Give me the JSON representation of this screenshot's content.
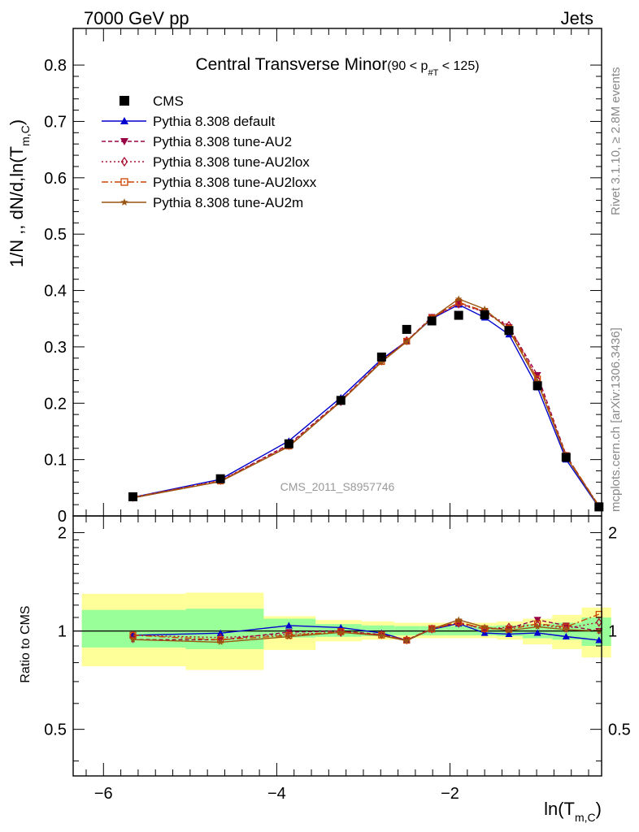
{
  "header": {
    "left": "7000 GeV pp",
    "right": "Jets"
  },
  "side": {
    "rivet": "Rivet 3.1.10, ≥ 2.8M events",
    "mcplots": "mcplots.cern.ch [arXiv:1306.3436]"
  },
  "watermark": "CMS_2011_S8957746",
  "chart_data": {
    "type": "line",
    "title": "Central Transverse Minor",
    "title_sub": "(90 < p",
    "title_sub_script": "#T",
    "title_sub_end": " < 125)",
    "ylabel": "1/N ,, dN/d,ln(T",
    "ylabel_sub": "m,C",
    "ylabel_end": ")",
    "xlabel": "ln(T",
    "xlabel_sub": "m,C",
    "xlabel_end": ")",
    "xlim": [
      -6.35,
      -0.25
    ],
    "ylim": [
      0,
      0.865
    ],
    "ratio_ylabel": "Ratio to CMS",
    "ratio_ylim": [
      0.36,
      2.25
    ],
    "x_ticks": [
      -6,
      -4,
      -2
    ],
    "x_tick_labels": [
      "−6",
      "−4",
      "−2"
    ],
    "y_ticks": [
      0,
      0.1,
      0.2,
      0.3,
      0.4,
      0.5,
      0.6,
      0.7,
      0.8
    ],
    "y_tick_labels": [
      "0",
      "0.1",
      "0.2",
      "0.3",
      "0.4",
      "0.5",
      "0.6",
      "0.7",
      "0.8"
    ],
    "ratio_ticks": [
      0.5,
      1,
      2
    ],
    "ratio_tick_labels": [
      "0.5",
      "1",
      "2"
    ],
    "x": [
      -5.66,
      -4.65,
      -3.86,
      -3.26,
      -2.79,
      -2.5,
      -2.21,
      -1.9,
      -1.6,
      -1.32,
      -0.99,
      -0.66,
      -0.28
    ],
    "series": [
      {
        "name": "CMS",
        "color": "#000000",
        "marker": "square",
        "values": [
          0.034,
          0.066,
          0.128,
          0.205,
          0.282,
          0.331,
          0.346,
          0.356,
          0.357,
          0.329,
          0.231,
          0.104,
          0.016
        ]
      },
      {
        "name": "Pythia 8.308 default",
        "color": "#0000cc",
        "marker": "triangle-up",
        "values": [
          0.033,
          0.065,
          0.133,
          0.21,
          0.278,
          0.31,
          0.35,
          0.375,
          0.352,
          0.322,
          0.228,
          0.1,
          0.015
        ]
      },
      {
        "name": "Pythia 8.308 tune-AU2",
        "color": "#990044",
        "marker": "triangle-down",
        "values": [
          0.032,
          0.062,
          0.127,
          0.205,
          0.275,
          0.31,
          0.353,
          0.378,
          0.362,
          0.335,
          0.25,
          0.108,
          0.016
        ]
      },
      {
        "name": "Pythia 8.308 tune-AU2lox",
        "color": "#aa1133",
        "marker": "diamond-open",
        "values": [
          0.033,
          0.063,
          0.125,
          0.203,
          0.275,
          0.311,
          0.351,
          0.376,
          0.362,
          0.338,
          0.242,
          0.106,
          0.017
        ]
      },
      {
        "name": "Pythia 8.308 tune-AU2loxx",
        "color": "#cc4400",
        "marker": "square-open",
        "values": [
          0.033,
          0.062,
          0.124,
          0.204,
          0.274,
          0.31,
          0.351,
          0.379,
          0.363,
          0.333,
          0.243,
          0.107,
          0.018
        ]
      },
      {
        "name": "Pythia 8.308 tune-AU2m",
        "color": "#995511",
        "marker": "star",
        "values": [
          0.032,
          0.061,
          0.123,
          0.203,
          0.273,
          0.309,
          0.351,
          0.385,
          0.367,
          0.33,
          0.238,
          0.105,
          0.016
        ]
      }
    ],
    "ratio_bands": [
      {
        "x0": -6.25,
        "x1": -5.05,
        "green": [
          0.89,
          1.16
        ],
        "yellow": [
          0.78,
          1.3
        ]
      },
      {
        "x0": -5.05,
        "x1": -4.15,
        "green": [
          0.88,
          1.17
        ],
        "yellow": [
          0.76,
          1.31
        ]
      },
      {
        "x0": -4.15,
        "x1": -3.55,
        "green": [
          0.955,
          1.09
        ],
        "yellow": [
          0.875,
          1.11
        ]
      },
      {
        "x0": -3.55,
        "x1": -3.02,
        "green": [
          0.96,
          1.05
        ],
        "yellow": [
          0.93,
          1.08
        ]
      },
      {
        "x0": -3.02,
        "x1": -2.64,
        "green": [
          0.965,
          1.04
        ],
        "yellow": [
          0.94,
          1.07
        ]
      },
      {
        "x0": -2.64,
        "x1": -2.35,
        "green": [
          0.97,
          1.035
        ],
        "yellow": [
          0.95,
          1.06
        ]
      },
      {
        "x0": -2.35,
        "x1": -2.06,
        "green": [
          0.97,
          1.035
        ],
        "yellow": [
          0.95,
          1.06
        ]
      },
      {
        "x0": -2.06,
        "x1": -1.75,
        "green": [
          0.97,
          1.035
        ],
        "yellow": [
          0.95,
          1.06
        ]
      },
      {
        "x0": -1.75,
        "x1": -1.46,
        "green": [
          0.97,
          1.035
        ],
        "yellow": [
          0.95,
          1.06
        ]
      },
      {
        "x0": -1.46,
        "x1": -1.16,
        "green": [
          0.965,
          1.04
        ],
        "yellow": [
          0.94,
          1.07
        ]
      },
      {
        "x0": -1.16,
        "x1": -0.82,
        "green": [
          0.95,
          1.05
        ],
        "yellow": [
          0.91,
          1.09
        ]
      },
      {
        "x0": -0.82,
        "x1": -0.48,
        "green": [
          0.94,
          1.06
        ],
        "yellow": [
          0.88,
          1.12
        ]
      },
      {
        "x0": -0.48,
        "x1": -0.14,
        "green": [
          0.9,
          1.1
        ],
        "yellow": [
          0.83,
          1.18
        ]
      }
    ]
  }
}
